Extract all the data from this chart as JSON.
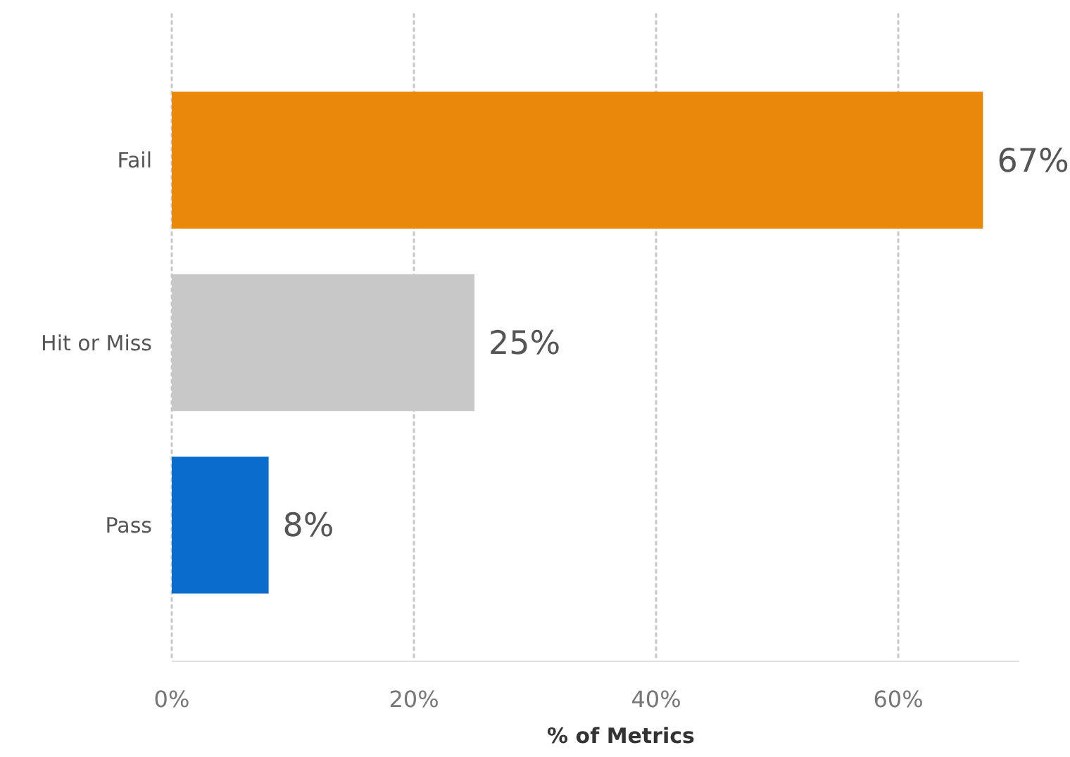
{
  "chart_data": {
    "type": "bar",
    "orientation": "horizontal",
    "xlabel": "% of Metrics",
    "categories": [
      "Fail",
      "Hit or Miss",
      "Pass"
    ],
    "values": [
      67,
      25,
      8
    ],
    "colors": [
      "#e8890c",
      "#c8c8c8",
      "#0a6ccc"
    ],
    "value_labels": [
      "67%",
      "25%",
      "8%"
    ],
    "xlim": [
      0,
      70
    ],
    "xticks": [
      {
        "value": 0,
        "label": "0%"
      },
      {
        "value": 20,
        "label": "20%"
      },
      {
        "value": 40,
        "label": "40%"
      },
      {
        "value": 60,
        "label": "60%"
      }
    ],
    "grid": "x",
    "line_style": "dotted"
  }
}
